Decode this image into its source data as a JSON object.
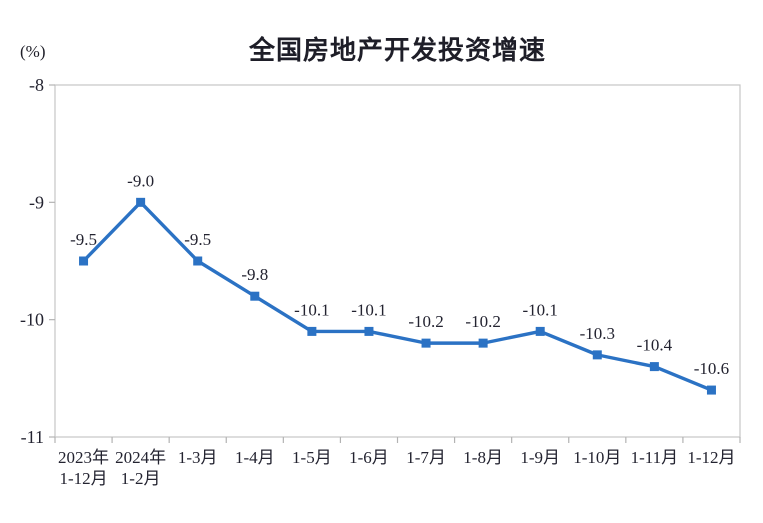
{
  "chart_data": {
    "type": "line",
    "title": "全国房地产开发投资增速",
    "y_unit": "(%)",
    "xlabel": "",
    "ylabel": "(%)",
    "categories": [
      [
        "2023年",
        "1-12月"
      ],
      [
        "2024年",
        "1-2月"
      ],
      [
        "1-3月"
      ],
      [
        "1-4月"
      ],
      [
        "1-5月"
      ],
      [
        "1-6月"
      ],
      [
        "1-7月"
      ],
      [
        "1-8月"
      ],
      [
        "1-9月"
      ],
      [
        "1-10月"
      ],
      [
        "1-11月"
      ],
      [
        "1-12月"
      ]
    ],
    "values": [
      -9.5,
      -9.0,
      -9.5,
      -9.8,
      -10.1,
      -10.1,
      -10.2,
      -10.2,
      -10.1,
      -10.3,
      -10.4,
      -10.6
    ],
    "point_labels": [
      "-9.5",
      "-9.0",
      "-9.5",
      "-9.8",
      "-10.1",
      "-10.1",
      "-10.2",
      "-10.2",
      "-10.1",
      "-10.3",
      "-10.4",
      "-10.6"
    ],
    "ylim": [
      -11,
      -8
    ],
    "yticks": [
      -8,
      -9,
      -10,
      -11
    ],
    "ytick_labels": [
      "-8",
      "-9",
      "-10",
      "-11"
    ],
    "grid": false,
    "legend_position": "none",
    "colors": {
      "line": "#2b72c4",
      "marker": "#2b72c4",
      "text": "#232330",
      "border": "#c6c6c6",
      "tick": "#b3b3b3"
    }
  }
}
